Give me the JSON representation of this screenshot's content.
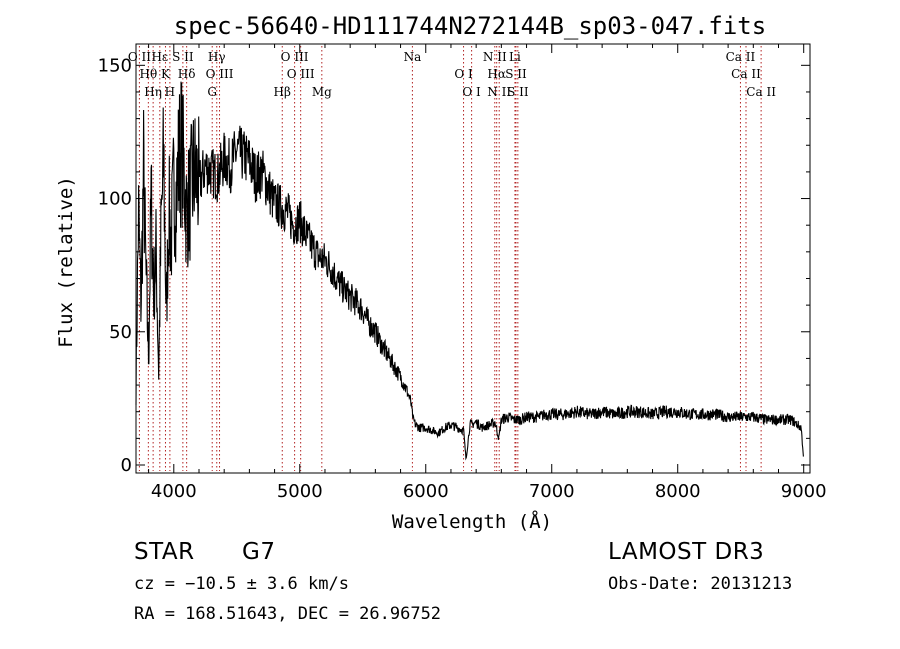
{
  "chart_data": {
    "type": "line",
    "title": "spec-56640-HD111744N272144B_sp03-047.fits",
    "xlabel": "Wavelength (Å)",
    "ylabel": "Flux (relative)",
    "xlim": [
      3700,
      9050
    ],
    "ylim": [
      -3,
      158
    ],
    "x_ticks": [
      4000,
      5000,
      6000,
      7000,
      8000,
      9000
    ],
    "y_ticks": [
      0,
      50,
      100,
      150
    ],
    "series": [
      {
        "name": "flux",
        "x": [
          3700,
          3720,
          3740,
          3760,
          3780,
          3800,
          3820,
          3840,
          3860,
          3880,
          3900,
          3920,
          3940,
          3960,
          3980,
          4000,
          4020,
          4040,
          4060,
          4080,
          4100,
          4130,
          4160,
          4200,
          4250,
          4300,
          4350,
          4400,
          4450,
          4500,
          4550,
          4600,
          4650,
          4700,
          4750,
          4800,
          4850,
          4900,
          4950,
          5000,
          5050,
          5100,
          5150,
          5200,
          5250,
          5300,
          5350,
          5400,
          5450,
          5500,
          5550,
          5600,
          5650,
          5700,
          5750,
          5800,
          5850,
          5880,
          5900,
          5920,
          5950,
          6000,
          6050,
          6100,
          6150,
          6200,
          6250,
          6300,
          6320,
          6350,
          6400,
          6450,
          6500,
          6550,
          6580,
          6600,
          6650,
          6700,
          6750,
          6800,
          6850,
          6900,
          6950,
          7000,
          7100,
          7200,
          7300,
          7400,
          7500,
          7600,
          7700,
          7800,
          7900,
          8000,
          8100,
          8200,
          8300,
          8400,
          8500,
          8600,
          8700,
          8800,
          8900,
          8980,
          9000
        ],
        "y": [
          30,
          95,
          60,
          110,
          70,
          40,
          100,
          65,
          80,
          35,
          90,
          115,
          55,
          95,
          85,
          105,
          100,
          115,
          120,
          110,
          95,
          100,
          110,
          105,
          112,
          110,
          108,
          115,
          112,
          118,
          116,
          114,
          108,
          110,
          104,
          98,
          97,
          95,
          90,
          92,
          86,
          82,
          78,
          77,
          74,
          69,
          66,
          63,
          61,
          58,
          53,
          50,
          45,
          41,
          37,
          33,
          28,
          24,
          17,
          15,
          14,
          14,
          13,
          12,
          14,
          15,
          14,
          13,
          2,
          15,
          16,
          14,
          15,
          16,
          10,
          17,
          18,
          17,
          17,
          18,
          18,
          18,
          19,
          19,
          19,
          20,
          19,
          20,
          19,
          20,
          20,
          19,
          20,
          20,
          19,
          19,
          19,
          18,
          18,
          18,
          17,
          17,
          17,
          14,
          2
        ]
      }
    ],
    "spectral_lines": [
      {
        "label": "O II",
        "x": 3727
      },
      {
        "label": "Hθ",
        "x": 3798
      },
      {
        "label": "Hη",
        "x": 3836
      },
      {
        "label": "Hε",
        "x": 3889
      },
      {
        "label": "K",
        "x": 3934
      },
      {
        "label": "H",
        "x": 3969
      },
      {
        "label": "S II",
        "x": 4072
      },
      {
        "label": "Hδ",
        "x": 4102
      },
      {
        "label": "G",
        "x": 4305
      },
      {
        "label": "Hγ",
        "x": 4341
      },
      {
        "label": "O III",
        "x": 4363
      },
      {
        "label": "Hβ",
        "x": 4861
      },
      {
        "label": "O III",
        "x": 4959
      },
      {
        "label": "O III",
        "x": 5007
      },
      {
        "label": "Mg",
        "x": 5175
      },
      {
        "label": "Na",
        "x": 5894
      },
      {
        "label": "O I",
        "x": 6300
      },
      {
        "label": "O I",
        "x": 6364
      },
      {
        "label": "N II",
        "x": 6548
      },
      {
        "label": "Hα",
        "x": 6563
      },
      {
        "label": "N II",
        "x": 6583
      },
      {
        "label": "Li",
        "x": 6708
      },
      {
        "label": "S II",
        "x": 6716
      },
      {
        "label": "S II",
        "x": 6731
      },
      {
        "label": "Ca II",
        "x": 8498
      },
      {
        "label": "Ca II",
        "x": 8542
      },
      {
        "label": "Ca II",
        "x": 8662
      }
    ]
  },
  "info": {
    "object_class": "STAR",
    "subclass": "G7",
    "survey": "LAMOST DR3",
    "cz": "cz = −10.5 ± 3.6 km/s",
    "obs_date": "Obs-Date: 20131213",
    "coords": "RA = 168.51643, DEC =  26.96752"
  },
  "colors": {
    "line_marker": "#b22222",
    "spectrum": "#000000"
  }
}
